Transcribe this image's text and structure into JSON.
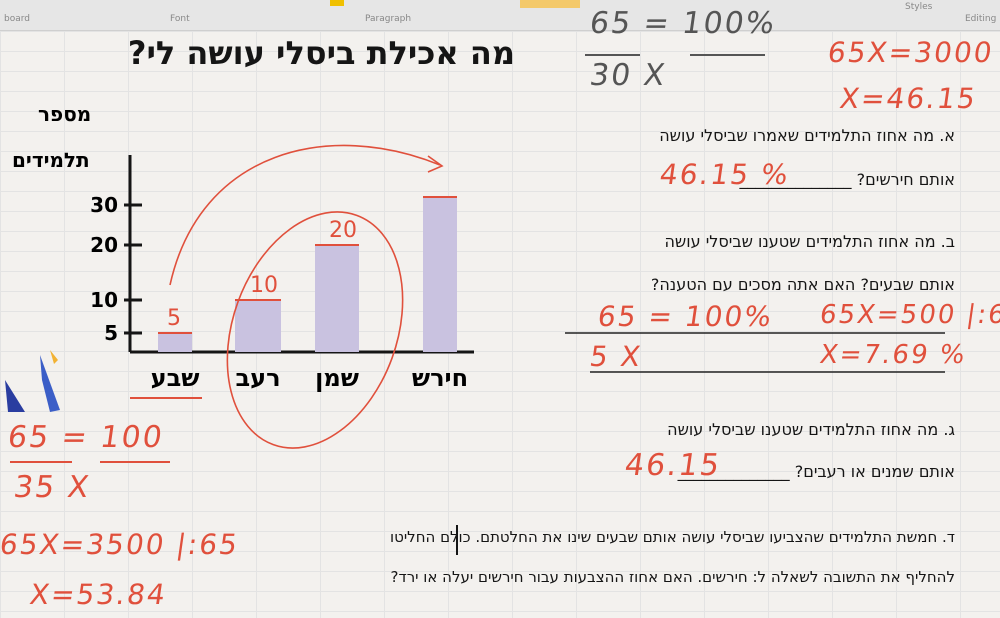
{
  "ribbon": {
    "groups": [
      "board",
      "Font",
      "Paragraph",
      "Styles",
      "Editing"
    ],
    "styles_label": "Styles",
    "editing_label": "Editing"
  },
  "title": "מה אכילת ביסלי עושה לי?",
  "chart_data": {
    "type": "bar",
    "ylabel": [
      "מספר",
      "תלמידים"
    ],
    "yticks": [
      5,
      10,
      20,
      30
    ],
    "categories": [
      "שבע",
      "רעב",
      "שמן",
      "חירש"
    ],
    "values": [
      5,
      10,
      20,
      30
    ],
    "ylim": [
      0,
      30
    ],
    "annotations": [
      "5",
      "10",
      "20"
    ]
  },
  "questions": {
    "a_line1": "א. מה אחוז התלמידים שאמרו שביסלי עושה",
    "a_line2": "אותם חירשים? ______________",
    "b_line1": "ב. מה אחוז התלמידים שטענו שביסלי עושה",
    "b_line2": "אותם שבעים? האם אתה מסכים עם הטענה?",
    "c_line1": "ג. מה אחוז התלמידים שטענו שביסלי עושה",
    "c_line2": "אותם שמנים או רעבים? ______________",
    "d_line1": "ד. חמשת התלמידים שהצביעו שביסלי עושה אותם שבעים שינו את החלטתם. כולם החליטו",
    "d_line2": "להחליף את התשובה לשאלה ל: חירשים. האם אחוז ההצבעות עבור חירשים יעלה או ירד?"
  },
  "handwriting": {
    "top_frac": "65 = 100%",
    "top_frac_bottom": "30      X",
    "top_eq1": "65X=3000",
    "top_eq2": "X=46.15",
    "ans_a": "46.15 %",
    "b_frac_top": "65 = 100%",
    "b_frac_bot": "5      X",
    "b_eq1": "65X=500 |:65",
    "b_eq2": "X=7.69 %",
    "ans_c": "46.15",
    "left_frac_top": "65 = 100",
    "left_frac_bot": "35      X",
    "left_eq1": "65X=3500 |:65",
    "left_eq2": "X=53.84"
  }
}
